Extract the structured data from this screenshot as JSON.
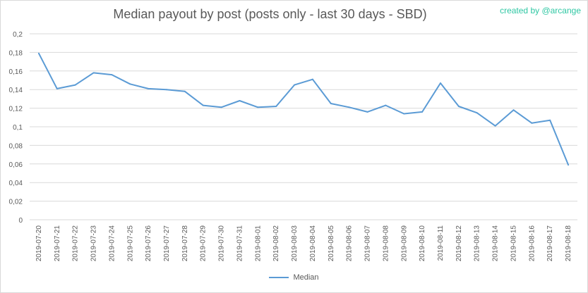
{
  "title": "Median payout by post (posts only - last 30 days - SBD)",
  "credit": "created by @arcange",
  "colors": {
    "line": "#5b9bd5",
    "grid": "#d9d9d9",
    "text": "#595959",
    "credit": "#2ec7a3"
  },
  "chart_data": {
    "type": "line",
    "title": "Median payout by post (posts only - last 30 days - SBD)",
    "xlabel": "",
    "ylabel": "",
    "ylim": [
      0,
      0.2
    ],
    "yticks": [
      "0",
      "0,02",
      "0,04",
      "0,06",
      "0,08",
      "0,1",
      "0,12",
      "0,14",
      "0,16",
      "0,18",
      "0,2"
    ],
    "grid": true,
    "legend": "bottom",
    "categories": [
      "2019-07-20",
      "2019-07-21",
      "2019-07-22",
      "2019-07-23",
      "2019-07-24",
      "2019-07-25",
      "2019-07-26",
      "2019-07-27",
      "2019-07-28",
      "2019-07-29",
      "2019-07-30",
      "2019-07-31",
      "2019-08-01",
      "2019-08-02",
      "2019-08-03",
      "2019-08-04",
      "2019-08-05",
      "2019-08-06",
      "2019-08-07",
      "2019-08-08",
      "2019-08-09",
      "2019-08-10",
      "2019-08-11",
      "2019-08-12",
      "2019-08-13",
      "2019-08-14",
      "2019-08-15",
      "2019-08-16",
      "2019-08-17",
      "2019-08-18"
    ],
    "series": [
      {
        "name": "Median",
        "values": [
          0.179,
          0.141,
          0.145,
          0.158,
          0.156,
          0.146,
          0.141,
          0.14,
          0.138,
          0.123,
          0.121,
          0.128,
          0.121,
          0.122,
          0.145,
          0.151,
          0.125,
          0.121,
          0.116,
          0.123,
          0.114,
          0.116,
          0.147,
          0.122,
          0.115,
          0.101,
          0.118,
          0.104,
          0.107,
          0.059
        ]
      }
    ]
  }
}
